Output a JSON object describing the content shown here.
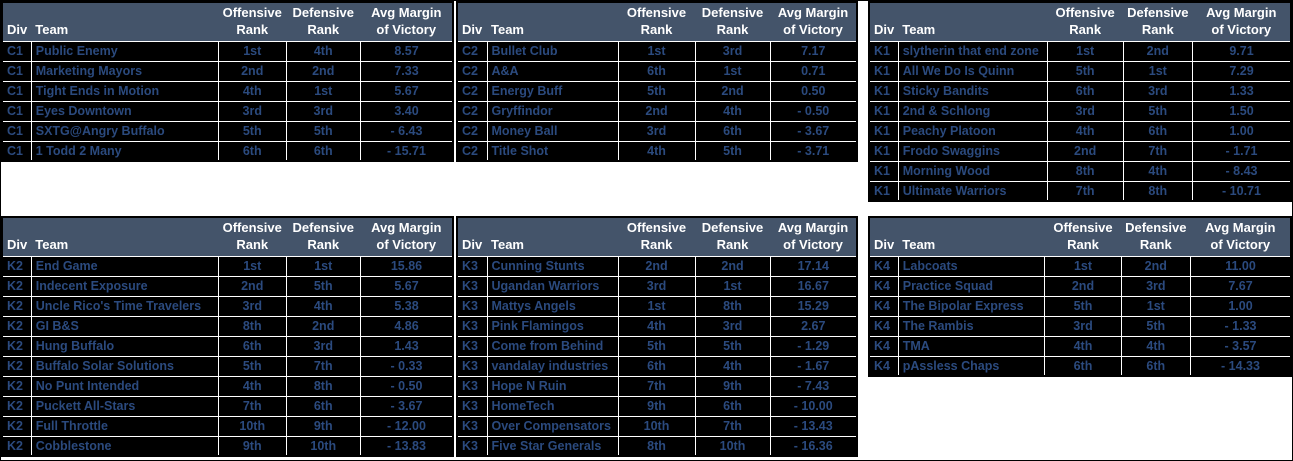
{
  "headers": {
    "div": "Div",
    "team": "Team",
    "offensive": "Offensive\nRank",
    "defensive": "Defensive\nRank",
    "margin": "Avg Margin\nof Victory"
  },
  "colors": {
    "header_bg": "#44546A",
    "header_text": "#FFFFFF",
    "row_bg": "#000000",
    "row_text": "#2B4A7E",
    "gridline": "#FFFFFF",
    "frame": "#000000"
  },
  "tables": [
    {
      "division": "C1",
      "rows": [
        [
          "C1",
          "Public Enemy",
          "1st",
          "4th",
          "8.57"
        ],
        [
          "C1",
          "Marketing Mayors",
          "2nd",
          "2nd",
          "7.33"
        ],
        [
          "C1",
          "Tight Ends in Motion",
          "4th",
          "1st",
          "5.67"
        ],
        [
          "C1",
          "Eyes Downtown",
          "3rd",
          "3rd",
          "3.40"
        ],
        [
          "C1",
          "SXTG@Angry Buffalo",
          "5th",
          "5th",
          "- 6.43"
        ],
        [
          "C1",
          "1 Todd 2 Many",
          "6th",
          "6th",
          "- 15.71"
        ]
      ]
    },
    {
      "division": "C2",
      "rows": [
        [
          "C2",
          "Bullet Club",
          "1st",
          "3rd",
          "7.17"
        ],
        [
          "C2",
          "A&A",
          "6th",
          "1st",
          "0.71"
        ],
        [
          "C2",
          "Energy Buff",
          "5th",
          "2nd",
          "0.50"
        ],
        [
          "C2",
          "Gryffindor",
          "2nd",
          "4th",
          "- 0.50"
        ],
        [
          "C2",
          "Money Ball",
          "3rd",
          "6th",
          "- 3.67"
        ],
        [
          "C2",
          "Title Shot",
          "4th",
          "5th",
          "- 3.71"
        ]
      ]
    },
    {
      "division": "K1",
      "rows": [
        [
          "K1",
          "slytherin that end zone",
          "1st",
          "2nd",
          "9.71"
        ],
        [
          "K1",
          "All We Do Is Quinn",
          "5th",
          "1st",
          "7.29"
        ],
        [
          "K1",
          "Sticky Bandits",
          "6th",
          "3rd",
          "1.33"
        ],
        [
          "K1",
          "2nd & Schlong",
          "3rd",
          "5th",
          "1.50"
        ],
        [
          "K1",
          "Peachy Platoon",
          "4th",
          "6th",
          "1.00"
        ],
        [
          "K1",
          "Frodo Swaggins",
          "2nd",
          "7th",
          "- 1.71"
        ],
        [
          "K1",
          "Morning Wood",
          "8th",
          "4th",
          "- 8.43"
        ],
        [
          "K1",
          "Ultimate Warriors",
          "7th",
          "8th",
          "- 10.71"
        ]
      ]
    },
    {
      "division": "K2",
      "rows": [
        [
          "K2",
          "End Game",
          "1st",
          "1st",
          "15.86"
        ],
        [
          "K2",
          "Indecent Exposure",
          "2nd",
          "5th",
          "5.67"
        ],
        [
          "K2",
          "Uncle Rico's Time Travelers",
          "3rd",
          "4th",
          "5.38"
        ],
        [
          "K2",
          "GI B&S",
          "8th",
          "2nd",
          "4.86"
        ],
        [
          "K2",
          "Hung Buffalo",
          "6th",
          "3rd",
          "1.43"
        ],
        [
          "K2",
          "Buffalo Solar Solutions",
          "5th",
          "7th",
          "- 0.33"
        ],
        [
          "K2",
          "No Punt Intended",
          "4th",
          "8th",
          "- 0.50"
        ],
        [
          "K2",
          "Puckett All-Stars",
          "7th",
          "6th",
          "- 3.67"
        ],
        [
          "K2",
          "Full Throttle",
          "10th",
          "9th",
          "- 12.00"
        ],
        [
          "K2",
          "Cobblestone",
          "9th",
          "10th",
          "- 13.83"
        ]
      ]
    },
    {
      "division": "K3",
      "rows": [
        [
          "K3",
          "Cunning Stunts",
          "2nd",
          "2nd",
          "17.14"
        ],
        [
          "K3",
          "Ugandan Warriors",
          "3rd",
          "1st",
          "16.67"
        ],
        [
          "K3",
          "Mattys Angels",
          "1st",
          "8th",
          "15.29"
        ],
        [
          "K3",
          "Pink Flamingos",
          "4th",
          "3rd",
          "2.67"
        ],
        [
          "K3",
          "Come from Behind",
          "5th",
          "5th",
          "- 1.29"
        ],
        [
          "K3",
          "vandalay industries",
          "6th",
          "4th",
          "- 1.67"
        ],
        [
          "K3",
          "Hope N Ruin",
          "7th",
          "9th",
          "- 7.43"
        ],
        [
          "K3",
          "HomeTech",
          "9th",
          "6th",
          "- 10.00"
        ],
        [
          "K3",
          "Over Compensators",
          "10th",
          "7th",
          "- 13.43"
        ],
        [
          "K3",
          "Five Star Generals",
          "8th",
          "10th",
          "- 16.36"
        ]
      ]
    },
    {
      "division": "K4",
      "rows": [
        [
          "K4",
          "Labcoats",
          "1st",
          "2nd",
          "11.00"
        ],
        [
          "K4",
          "Practice Squad",
          "2nd",
          "3rd",
          "7.67"
        ],
        [
          "K4",
          "The Bipolar Express",
          "5th",
          "1st",
          "1.00"
        ],
        [
          "K4",
          "The Rambis",
          "3rd",
          "5th",
          "- 1.33"
        ],
        [
          "K4",
          "TMA",
          "4th",
          "4th",
          "- 3.57"
        ],
        [
          "K4",
          "pAssless Chaps",
          "6th",
          "6th",
          "- 14.33"
        ]
      ]
    }
  ]
}
